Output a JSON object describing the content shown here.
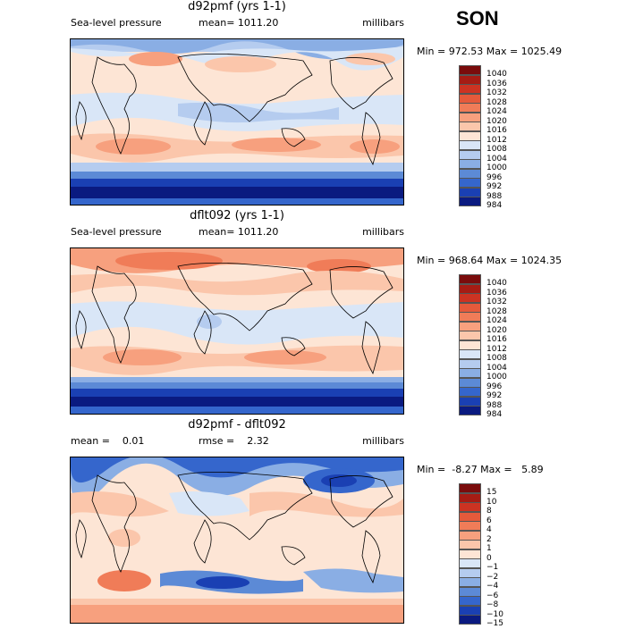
{
  "season": "SON",
  "scale_sets": {
    "slp": {
      "labels": [
        "1040",
        "1036",
        "1032",
        "1028",
        "1024",
        "1020",
        "1016",
        "1012",
        "1008",
        "1004",
        "1000",
        "996",
        "992",
        "988",
        "984"
      ],
      "colors": [
        "#7a0c0c",
        "#a61c14",
        "#cc3322",
        "#e55a3b",
        "#f07c58",
        "#f7a07e",
        "#fbc6ab",
        "#fde5d5",
        "#d9e6f7",
        "#b5ccef",
        "#8aaee4",
        "#5c8ad6",
        "#3566cc",
        "#1a40b3",
        "#0a1a80"
      ]
    },
    "diff": {
      "labels": [
        "15",
        "10",
        "8",
        "6",
        "4",
        "2",
        "1",
        "0",
        "−1",
        "−2",
        "−4",
        "−6",
        "−8",
        "−10",
        "−15"
      ],
      "colors": [
        "#7a0c0c",
        "#a61c14",
        "#cc3322",
        "#e55a3b",
        "#f07c58",
        "#f7a07e",
        "#fbc6ab",
        "#fde5d5",
        "#d9e6f7",
        "#b5ccef",
        "#8aaee4",
        "#5c8ad6",
        "#3566cc",
        "#1a40b3",
        "#0a1a80"
      ]
    }
  },
  "panels": [
    {
      "title": "d92pmf (yrs 1-1)",
      "left_label": "Sea-level pressure",
      "center_label": "mean= 1011.20",
      "right_label": "millibars",
      "minmax": "Min = 972.53 Max = 1025.49",
      "scale": "slp"
    },
    {
      "title": "dflt092 (yrs 1-1)",
      "left_label": "Sea-level pressure",
      "center_label": "mean= 1011.20",
      "right_label": "millibars",
      "minmax": "Min = 968.64 Max = 1024.35",
      "scale": "slp"
    },
    {
      "title": "d92pmf - dflt092",
      "left_label": "mean =    0.01",
      "center_label": "rmse =    2.32",
      "right_label": "millibars",
      "minmax": "Min =  -8.27 Max =   5.89",
      "scale": "diff"
    }
  ]
}
